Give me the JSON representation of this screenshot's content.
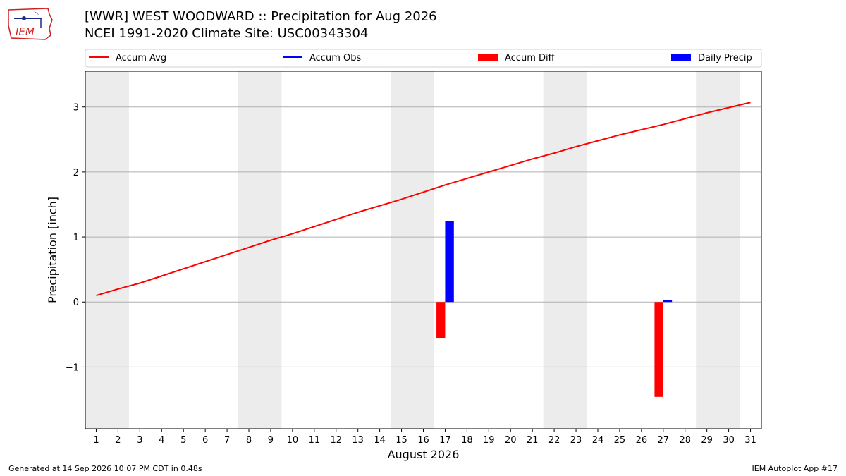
{
  "header": {
    "title_line1": "[WWR] WEST WOODWARD :: Precipitation for Aug 2026",
    "title_line2": "NCEI 1991-2020 Climate Site: USC00343304",
    "logo_text": "IEM"
  },
  "footer": {
    "generated": "Generated at 14 Sep 2026 10:07 PM CDT in 0.48s",
    "app": "IEM Autoplot App #17"
  },
  "chart_data": {
    "type": "line",
    "ylabel": "Precipitation [inch]",
    "xlabel": "August 2026",
    "xlim": [
      0.5,
      31.5
    ],
    "ylim": [
      -1.95,
      3.55
    ],
    "yticks": [
      -1,
      0,
      1,
      2,
      3
    ],
    "ytick_labels": [
      "−1",
      "0",
      "1",
      "2",
      "3"
    ],
    "categories": [
      "1",
      "2",
      "3",
      "4",
      "5",
      "6",
      "7",
      "8",
      "9",
      "10",
      "11",
      "12",
      "13",
      "14",
      "15",
      "16",
      "17",
      "18",
      "19",
      "20",
      "21",
      "22",
      "23",
      "24",
      "25",
      "26",
      "27",
      "28",
      "29",
      "30",
      "31"
    ],
    "grid": "horizontal",
    "legend_position": "top, above plot",
    "weekend_shading": [
      [
        1,
        2
      ],
      [
        8,
        9
      ],
      [
        15,
        16
      ],
      [
        22,
        23
      ],
      [
        29,
        30
      ]
    ],
    "legend": [
      {
        "label": "Accum Avg",
        "kind": "line",
        "color": "#ff0000"
      },
      {
        "label": "Accum Obs",
        "kind": "line",
        "color": "#0000ff"
      },
      {
        "label": "Accum Diff",
        "kind": "bar",
        "color": "#ff0000"
      },
      {
        "label": "Daily Precip",
        "kind": "bar",
        "color": "#0000ff"
      }
    ],
    "series": [
      {
        "name": "Accum Avg",
        "kind": "line",
        "color": "#ff0000",
        "x": [
          1,
          2,
          3,
          4,
          5,
          6,
          7,
          8,
          9,
          10,
          11,
          12,
          13,
          14,
          15,
          16,
          17,
          18,
          19,
          20,
          21,
          22,
          23,
          24,
          25,
          26,
          27,
          28,
          29,
          30,
          31
        ],
        "values": [
          0.1,
          0.2,
          0.29,
          0.4,
          0.51,
          0.62,
          0.73,
          0.84,
          0.95,
          1.05,
          1.16,
          1.27,
          1.38,
          1.48,
          1.58,
          1.69,
          1.8,
          1.9,
          2.0,
          2.1,
          2.2,
          2.29,
          2.39,
          2.48,
          2.57,
          2.65,
          2.73,
          2.82,
          2.91,
          2.99,
          3.07
        ]
      },
      {
        "name": "Accum Diff",
        "kind": "bar",
        "color": "#ff0000",
        "x": [
          17,
          27
        ],
        "values": [
          -0.56,
          -1.46
        ]
      },
      {
        "name": "Daily Precip",
        "kind": "bar",
        "color": "#0000ff",
        "x": [
          17,
          27
        ],
        "values": [
          1.25,
          0.03
        ]
      }
    ]
  }
}
